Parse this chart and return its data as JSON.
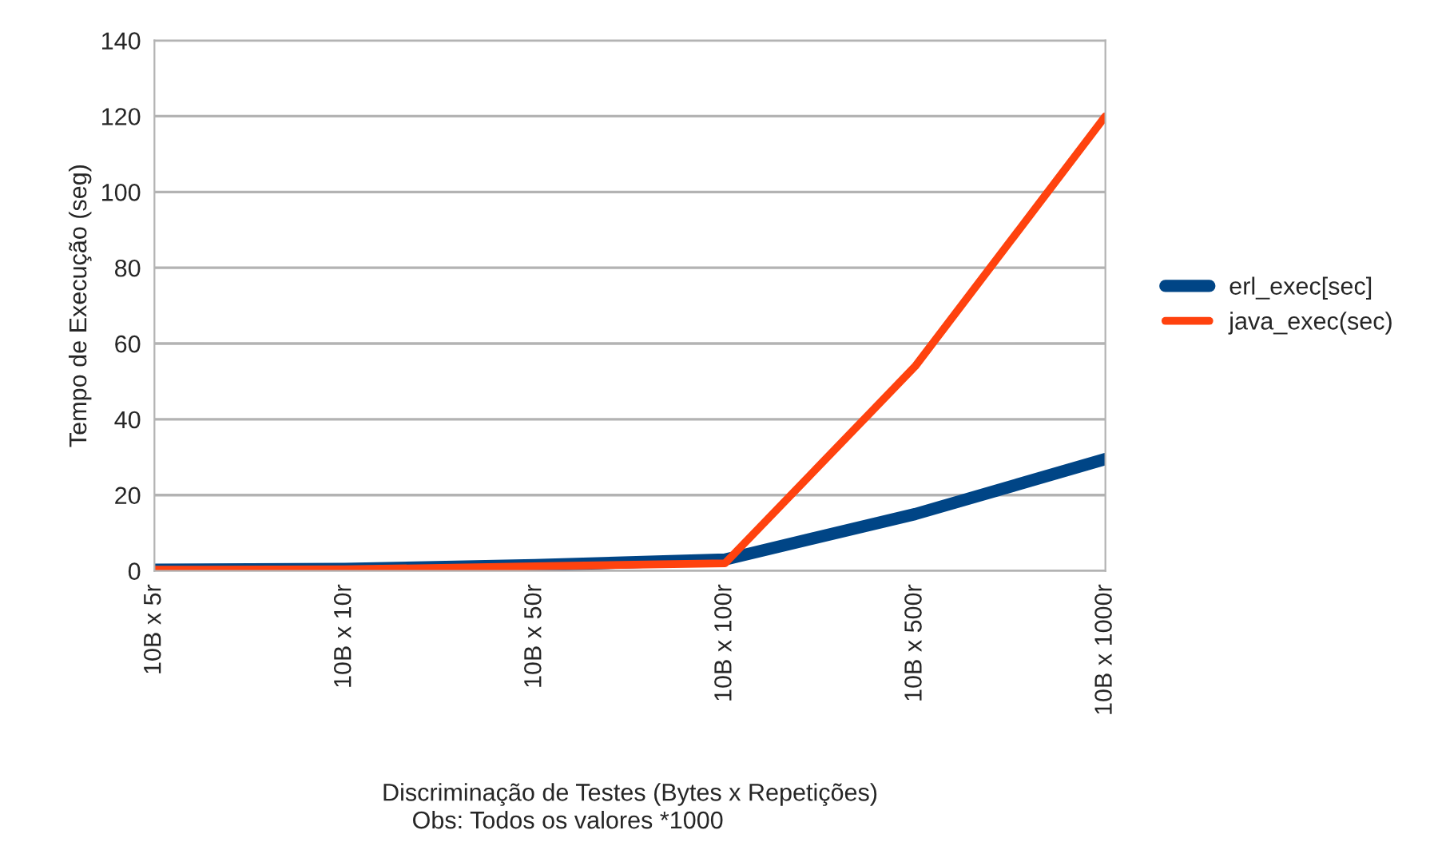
{
  "chart_data": {
    "type": "line",
    "xlabel": "Discriminação de Testes (Bytes x Repetições)",
    "ylabel": "Tempo de Execução (seg)",
    "annotations": [
      "Obs: Todos os valores *1000"
    ],
    "categories": [
      "10B x 5r",
      "10B x 10r",
      "10B x 50r",
      "10B x 100r",
      "10B x 500r",
      "10B x 1000r"
    ],
    "series": [
      {
        "name": "erl_exec[sec]",
        "color": "#004586",
        "values": [
          0.3,
          0.5,
          1.5,
          3,
          15,
          29.5
        ]
      },
      {
        "name": "java_exec(sec)",
        "color": "#ff420e",
        "values": [
          0.3,
          0.4,
          1.2,
          2,
          54,
          120
        ]
      }
    ],
    "ylim": [
      0,
      140
    ],
    "yticks": [
      0,
      20,
      40,
      60,
      80,
      100,
      120,
      140
    ],
    "grid": "y",
    "legend": "right",
    "marker": "none",
    "line_style": "solid"
  }
}
